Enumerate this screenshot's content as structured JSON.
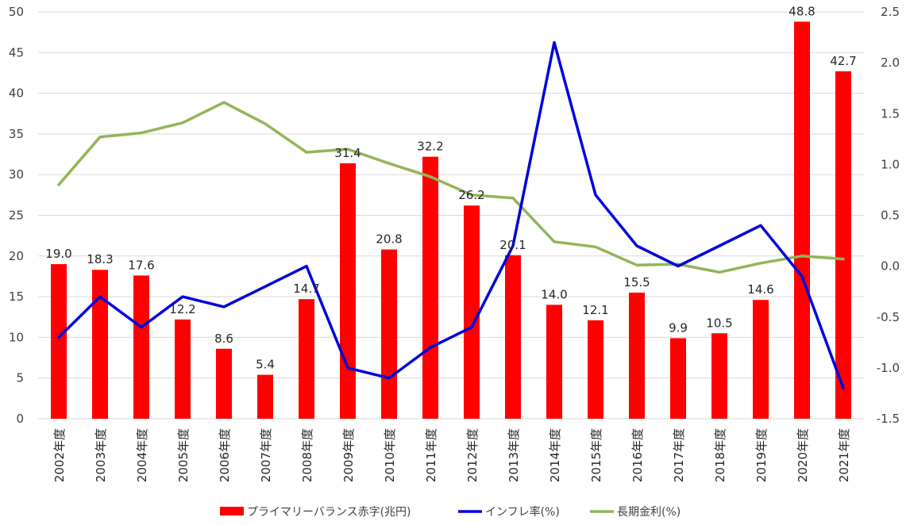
{
  "chart_data": {
    "type": "bar",
    "categories": [
      "2002年度",
      "2003年度",
      "2004年度",
      "2005年度",
      "2006年度",
      "2007年度",
      "2008年度",
      "2009年度",
      "2010年度",
      "2011年度",
      "2012年度",
      "2013年度",
      "2014年度",
      "2015年度",
      "2016年度",
      "2017年度",
      "2018年度",
      "2019年度",
      "2020年度",
      "2021年度"
    ],
    "series": [
      {
        "name": "プライマリーバランス赤字(兆円)",
        "type": "bar",
        "axis": "left",
        "color": "#ff0000",
        "values": [
          19.0,
          18.3,
          17.6,
          12.2,
          8.6,
          5.4,
          14.7,
          31.4,
          20.8,
          32.2,
          26.2,
          20.1,
          14.0,
          12.1,
          15.5,
          9.9,
          10.5,
          14.6,
          48.8,
          42.7
        ],
        "labels": [
          "19.0",
          "18.3",
          "17.6",
          "12.2",
          "8.6",
          "5.4",
          "14.7",
          "31.4",
          "20.8",
          "32.2",
          "26.2",
          "20.1",
          "14.0",
          "12.1",
          "15.5",
          "9.9",
          "10.5",
          "14.6",
          "48.8",
          "42.7"
        ]
      },
      {
        "name": "インフレ率(%)",
        "type": "line",
        "axis": "right",
        "color": "#0000dd",
        "values": [
          -0.7,
          -0.3,
          -0.6,
          -0.3,
          -0.4,
          -0.2,
          0.0,
          -1.0,
          -1.1,
          -0.8,
          -0.6,
          0.2,
          2.2,
          0.7,
          0.2,
          0.0,
          0.2,
          0.4,
          -0.1,
          -1.2
        ]
      },
      {
        "name": "長期金利(%)",
        "type": "line",
        "axis": "right",
        "color": "#92b558",
        "values": [
          0.8,
          1.27,
          1.31,
          1.41,
          1.61,
          1.4,
          1.12,
          1.15,
          1.01,
          0.88,
          0.7,
          0.67,
          0.24,
          0.19,
          0.01,
          0.02,
          -0.06,
          0.03,
          0.1,
          0.07
        ]
      }
    ],
    "y_left": {
      "min": 0,
      "max": 50,
      "ticks": [
        "0",
        "5",
        "10",
        "15",
        "20",
        "25",
        "30",
        "35",
        "40",
        "45",
        "50"
      ]
    },
    "y_right": {
      "min": -1.5,
      "max": 2.5,
      "ticks": [
        "-1.5",
        "-1.0",
        "-0.5",
        "0.0",
        "0.5",
        "1.0",
        "1.5",
        "2.0",
        "2.5"
      ]
    },
    "grid": "horizontal",
    "legend_position": "bottom"
  }
}
